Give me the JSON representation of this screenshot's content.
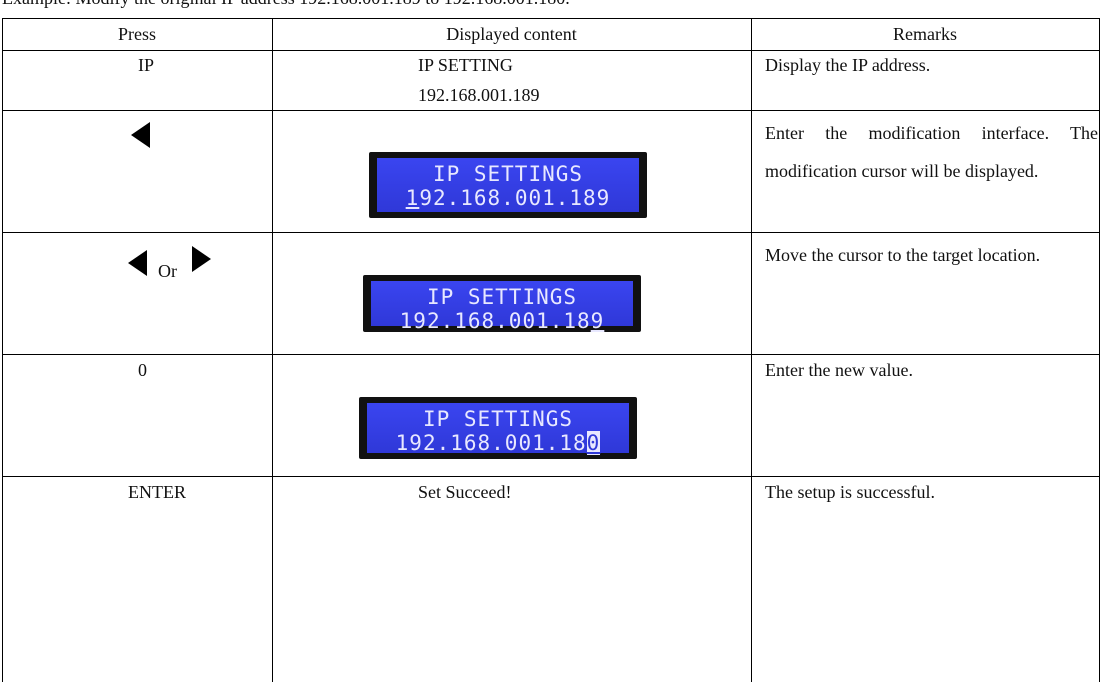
{
  "intro": "Example: Modify the original IP address 192.168.001.189 to 192.168.001.180.",
  "table": {
    "headers": [
      "Press",
      "Displayed content",
      "Remarks"
    ],
    "rows": [
      {
        "press": "IP",
        "display": [
          "IP SETTING",
          "192.168.001.189"
        ],
        "remarks": "Display the IP address."
      },
      {
        "lcd": {
          "title": "IP SETTINGS",
          "cursor": "1",
          "after": "92.168.001.189"
        },
        "remarks": "Enter the modification interface. The modification cursor will be displayed."
      },
      {
        "press_or": "Or",
        "lcd": {
          "title": "IP SETTINGS",
          "before": "192.168.001.18",
          "cursor": "9"
        },
        "remarks": "Move the cursor to the target location."
      },
      {
        "press": "0",
        "lcd": {
          "title": "IP SETTINGS",
          "before": "192.168.001.18",
          "cursor": "0"
        },
        "remarks": "Enter the new value."
      },
      {
        "press": "ENTER",
        "display": [
          "Set Succeed!"
        ],
        "remarks": "The setup is successful."
      }
    ]
  }
}
